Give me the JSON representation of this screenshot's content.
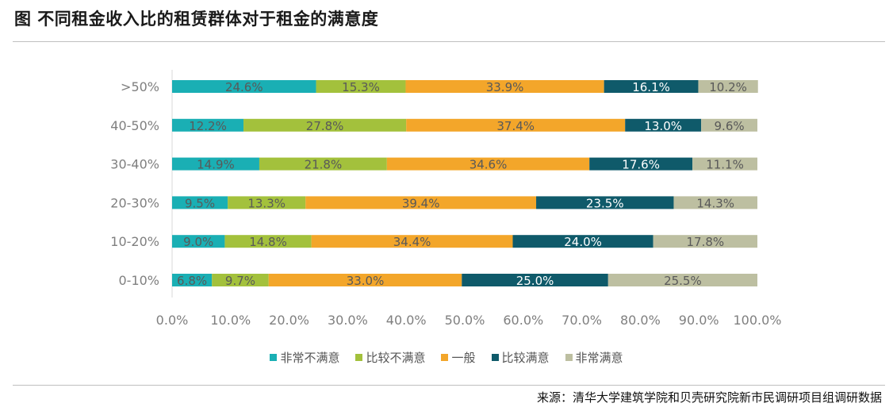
{
  "header": {
    "title": "图 不同租金收入比的租赁群体对于租金的满意度"
  },
  "footer": {
    "source": "来源：清华大学建筑学院和贝壳研究院新市民调研项目组调研数据"
  },
  "chart_data": {
    "type": "stacked_horizontal_bar",
    "title": "图 不同租金收入比的租赁群体对于租金的满意度",
    "categories": [
      ">50%",
      "40-50%",
      "30-40%",
      "20-30%",
      "10-20%",
      "0-10%"
    ],
    "series": [
      {
        "name": "非常不满意",
        "color": "#1aafb4",
        "label_color": "#595959",
        "values": [
          24.6,
          12.2,
          14.9,
          9.5,
          9.0,
          6.8
        ]
      },
      {
        "name": "比较不满意",
        "color": "#a3c13c",
        "label_color": "#595959",
        "values": [
          15.3,
          27.8,
          21.8,
          13.3,
          14.8,
          9.7
        ]
      },
      {
        "name": "一般",
        "color": "#f3a62a",
        "label_color": "#595959",
        "values": [
          33.9,
          37.4,
          34.6,
          39.4,
          34.4,
          33.0
        ]
      },
      {
        "name": "比较满意",
        "color": "#0f5a6a",
        "label_color": "#ffffff",
        "values": [
          16.1,
          13.0,
          17.6,
          23.5,
          24.0,
          25.0
        ]
      },
      {
        "name": "非常满意",
        "color": "#bdbfa1",
        "label_color": "#595959",
        "values": [
          10.2,
          9.6,
          11.1,
          14.3,
          17.8,
          25.5
        ]
      }
    ],
    "value_suffix": "%",
    "xlim": [
      0,
      100
    ],
    "xticks": [
      "0.0%",
      "10.0%",
      "20.0%",
      "30.0%",
      "40.0%",
      "50.0%",
      "60.0%",
      "70.0%",
      "80.0%",
      "90.0%",
      "100.0%"
    ],
    "legend_position": "bottom"
  }
}
